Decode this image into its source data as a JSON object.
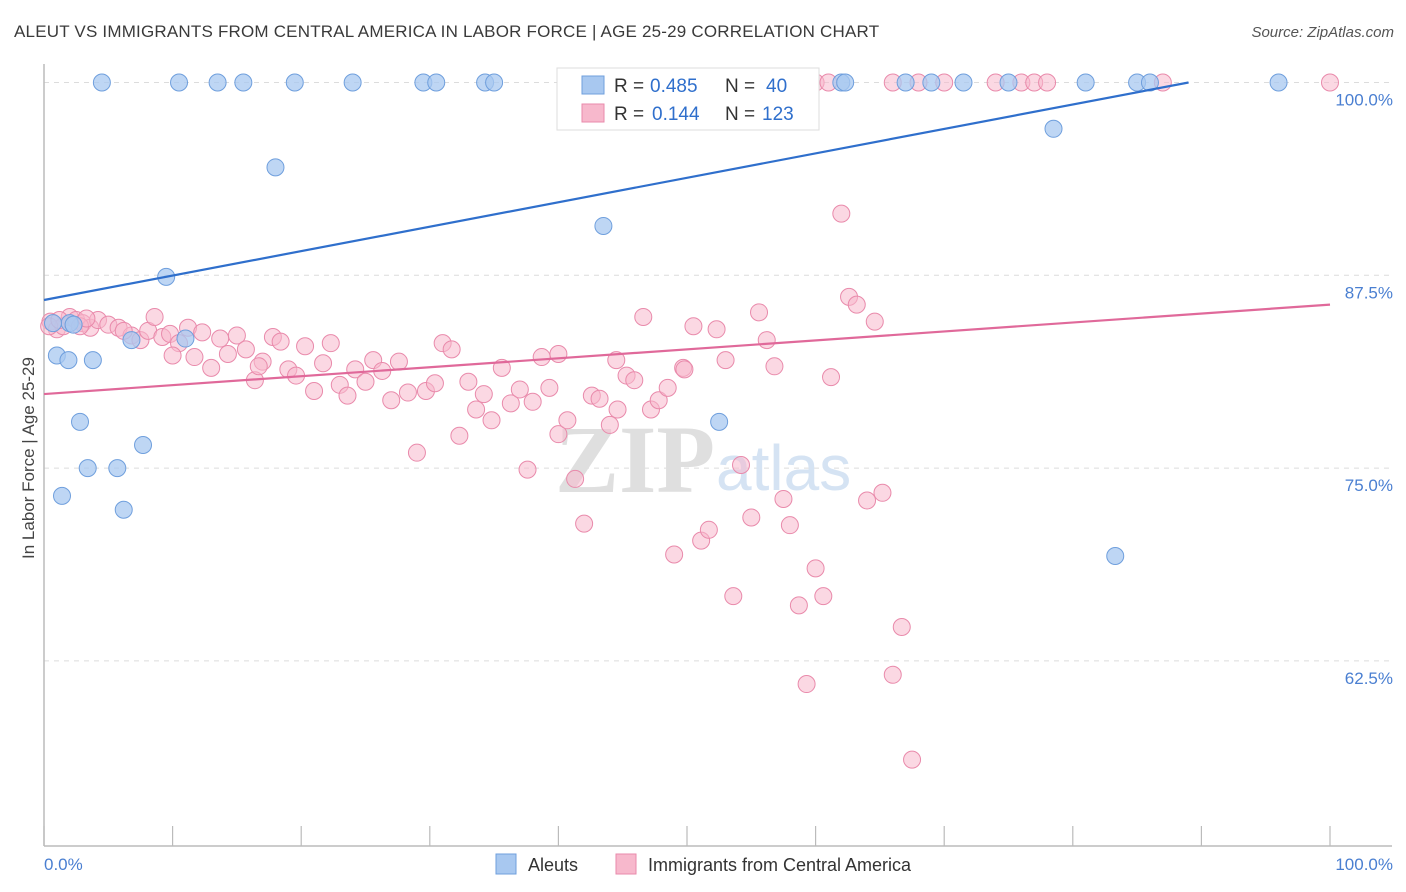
{
  "title": "ALEUT VS IMMIGRANTS FROM CENTRAL AMERICA IN LABOR FORCE | AGE 25-29 CORRELATION CHART",
  "source": "Source: ZipAtlas.com",
  "watermark": {
    "zip": "ZIP",
    "atlas": "atlas"
  },
  "colors": {
    "blue_fill": "#a8c8f0",
    "blue_stroke": "#6f9fdd",
    "blue_line": "#2f6fcc",
    "pink_fill": "#f7b8cc",
    "pink_stroke": "#e98aab",
    "pink_line": "#e0699a",
    "tick_label": "#4a7fd1"
  },
  "legend_stats": [
    {
      "r_label": "R =",
      "r_value": "0.485",
      "n_label": "N =",
      "n_value": "40"
    },
    {
      "r_label": "R =",
      "r_value": "0.144",
      "n_label": "N =",
      "n_value": "123"
    }
  ],
  "chart_data": {
    "type": "scatter",
    "ylabel": "In Labor Force | Age 25-29",
    "xlabel": "",
    "x_tick_labels": [
      "0.0%",
      "100.0%"
    ],
    "y_tick_labels": [
      "100.0%",
      "87.5%",
      "75.0%",
      "62.5%"
    ],
    "y_ticks": [
      100.0,
      87.5,
      75.0,
      62.5
    ],
    "xlim": [
      0,
      100
    ],
    "ylim": [
      50.5,
      101.2
    ],
    "grid": true,
    "legend": "bottom-center",
    "series": [
      {
        "name": "Aleuts",
        "color": "#a8c8f0",
        "trend": {
          "x": [
            0,
            89
          ],
          "y": [
            85.9,
            100.0
          ]
        },
        "points": [
          [
            4.5,
            100
          ],
          [
            10.5,
            100
          ],
          [
            13.5,
            100
          ],
          [
            15.5,
            100
          ],
          [
            19.5,
            100
          ],
          [
            24,
            100
          ],
          [
            29.5,
            100
          ],
          [
            30.5,
            100
          ],
          [
            34.3,
            100
          ],
          [
            35,
            100
          ],
          [
            62,
            100
          ],
          [
            62.3,
            100
          ],
          [
            67,
            100
          ],
          [
            69,
            100
          ],
          [
            71.5,
            100
          ],
          [
            75,
            100
          ],
          [
            81,
            100
          ],
          [
            85,
            100
          ],
          [
            86,
            100
          ],
          [
            96,
            100
          ],
          [
            18,
            94.5
          ],
          [
            78.5,
            97.0
          ],
          [
            43.5,
            90.7
          ],
          [
            9.5,
            87.4
          ],
          [
            2,
            84.4
          ],
          [
            2.3,
            84.3
          ],
          [
            11,
            83.4
          ],
          [
            6.8,
            83.3
          ],
          [
            1,
            82.3
          ],
          [
            1.9,
            82.0
          ],
          [
            3.8,
            82.0
          ],
          [
            2.8,
            78.0
          ],
          [
            52.5,
            78.0
          ],
          [
            7.7,
            76.5
          ],
          [
            3.4,
            75.0
          ],
          [
            5.7,
            75.0
          ],
          [
            1.4,
            73.2
          ],
          [
            6.2,
            72.3
          ],
          [
            83.3,
            69.3
          ],
          [
            0.7,
            84.4
          ]
        ]
      },
      {
        "name": "Immigrants from Central America",
        "color": "#f7b8cc",
        "trend": {
          "x": [
            0,
            100
          ],
          "y": [
            79.8,
            85.6
          ]
        },
        "points": [
          [
            0.5,
            84.5
          ],
          [
            1,
            84.0
          ],
          [
            1.5,
            84.2
          ],
          [
            2,
            84.8
          ],
          [
            2.5,
            84.6
          ],
          [
            3,
            84.4
          ],
          [
            3.6,
            84.1
          ],
          [
            4.2,
            84.6
          ],
          [
            5,
            84.3
          ],
          [
            5.8,
            84.1
          ],
          [
            6.8,
            83.6
          ],
          [
            7.5,
            83.3
          ],
          [
            8.1,
            83.9
          ],
          [
            8.6,
            84.8
          ],
          [
            9.2,
            83.5
          ],
          [
            9.8,
            83.7
          ],
          [
            10.5,
            83.1
          ],
          [
            11.2,
            84.1
          ],
          [
            11.7,
            82.2
          ],
          [
            12.3,
            83.8
          ],
          [
            13,
            81.5
          ],
          [
            13.7,
            83.4
          ],
          [
            14.3,
            82.4
          ],
          [
            15,
            83.6
          ],
          [
            15.7,
            82.7
          ],
          [
            16.4,
            80.7
          ],
          [
            17,
            81.9
          ],
          [
            17.8,
            83.5
          ],
          [
            18.4,
            83.2
          ],
          [
            19,
            81.4
          ],
          [
            19.6,
            81.0
          ],
          [
            20.3,
            82.9
          ],
          [
            21,
            80.0
          ],
          [
            21.7,
            81.8
          ],
          [
            22.3,
            83.1
          ],
          [
            23,
            80.4
          ],
          [
            23.6,
            79.7
          ],
          [
            24.2,
            81.4
          ],
          [
            25,
            80.6
          ],
          [
            25.6,
            82.0
          ],
          [
            26.3,
            81.3
          ],
          [
            27,
            79.4
          ],
          [
            27.6,
            81.9
          ],
          [
            28.3,
            79.9
          ],
          [
            29,
            76.0
          ],
          [
            29.7,
            80.0
          ],
          [
            30.4,
            80.5
          ],
          [
            31,
            83.1
          ],
          [
            31.7,
            82.7
          ],
          [
            32.3,
            77.1
          ],
          [
            33,
            80.6
          ],
          [
            33.6,
            78.8
          ],
          [
            34.2,
            79.8
          ],
          [
            34.8,
            78.1
          ],
          [
            35.6,
            81.5
          ],
          [
            36.3,
            79.2
          ],
          [
            37,
            80.1
          ],
          [
            37.6,
            74.9
          ],
          [
            38,
            79.3
          ],
          [
            38.7,
            82.2
          ],
          [
            39.3,
            80.2
          ],
          [
            40,
            77.2
          ],
          [
            40.7,
            78.1
          ],
          [
            41.3,
            74.3
          ],
          [
            42,
            71.4
          ],
          [
            42.6,
            79.7
          ],
          [
            43.2,
            79.5
          ],
          [
            44,
            77.8
          ],
          [
            44.6,
            78.8
          ],
          [
            45.3,
            81.0
          ],
          [
            45.9,
            80.7
          ],
          [
            46.6,
            84.8
          ],
          [
            47.2,
            78.8
          ],
          [
            47.8,
            79.4
          ],
          [
            48.5,
            80.2
          ],
          [
            49,
            69.4
          ],
          [
            49.7,
            81.5
          ],
          [
            50.5,
            84.2
          ],
          [
            51.1,
            70.3
          ],
          [
            51.7,
            71.0
          ],
          [
            52.3,
            84.0
          ],
          [
            53,
            82.0
          ],
          [
            53.6,
            66.7
          ],
          [
            54.2,
            75.2
          ],
          [
            55,
            71.8
          ],
          [
            55.6,
            85.1
          ],
          [
            56.2,
            83.3
          ],
          [
            56.8,
            81.6
          ],
          [
            57.5,
            73.0
          ],
          [
            58,
            71.3
          ],
          [
            58.7,
            66.1
          ],
          [
            59.3,
            61.0
          ],
          [
            60,
            68.5
          ],
          [
            60.6,
            66.7
          ],
          [
            61.2,
            80.9
          ],
          [
            62,
            91.5
          ],
          [
            62.6,
            86.1
          ],
          [
            63.2,
            85.6
          ],
          [
            64,
            72.9
          ],
          [
            64.6,
            84.5
          ],
          [
            65.2,
            73.4
          ],
          [
            66,
            61.6
          ],
          [
            66.7,
            64.7
          ],
          [
            67.5,
            56.1
          ],
          [
            0.4,
            84.2
          ],
          [
            1.2,
            84.6
          ],
          [
            2.8,
            84.2
          ],
          [
            3.3,
            84.7
          ],
          [
            40,
            82.4
          ],
          [
            44.5,
            82.0
          ],
          [
            49.8,
            81.4
          ],
          [
            55,
            100
          ],
          [
            57,
            100
          ],
          [
            60,
            100
          ],
          [
            61,
            100
          ],
          [
            66,
            100
          ],
          [
            68,
            100
          ],
          [
            70,
            100
          ],
          [
            74,
            100
          ],
          [
            76,
            100
          ],
          [
            77,
            100
          ],
          [
            78,
            100
          ],
          [
            87,
            100
          ],
          [
            100,
            100
          ],
          [
            6.2,
            83.9
          ],
          [
            10,
            82.3
          ],
          [
            16.7,
            81.6
          ]
        ]
      }
    ]
  }
}
